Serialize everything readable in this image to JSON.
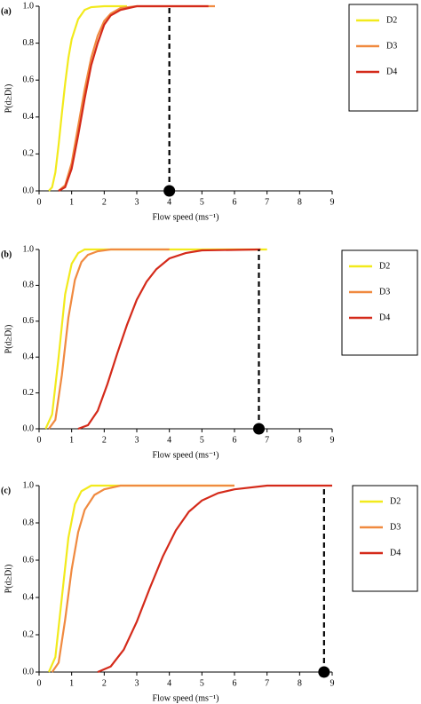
{
  "chart_data": [
    {
      "type": "line",
      "title": "(a)",
      "xlabel": "Flow speed (ms⁻¹)",
      "ylabel": "P(d≥Di)",
      "xlim": [
        0,
        9
      ],
      "xticks": [
        0,
        1,
        2,
        3,
        4,
        5,
        6,
        7,
        8,
        9
      ],
      "ylim": [
        0,
        1
      ],
      "yticks": [
        {
          "value": 0,
          "label": "0.0"
        },
        0.2,
        0.4,
        0.6,
        0.8,
        {
          "value": 1,
          "label": "1.0"
        }
      ],
      "series": [
        {
          "name": "D2",
          "color": "#f2ea1c",
          "x": [
            0.3,
            0.4,
            0.5,
            0.6,
            0.7,
            0.8,
            0.9,
            1.0,
            1.2,
            1.4,
            1.6,
            2.0,
            2.7
          ],
          "values": [
            0,
            0.02,
            0.1,
            0.25,
            0.42,
            0.58,
            0.72,
            0.82,
            0.93,
            0.98,
            0.995,
            1,
            1
          ]
        },
        {
          "name": "D3",
          "color": "#f08a40",
          "x": [
            0.6,
            0.8,
            1.0,
            1.2,
            1.4,
            1.6,
            1.8,
            2.0,
            2.2,
            2.5,
            3.0,
            4.0,
            5.4
          ],
          "values": [
            0,
            0.03,
            0.15,
            0.35,
            0.55,
            0.72,
            0.84,
            0.92,
            0.96,
            0.99,
            1,
            1,
            1
          ]
        },
        {
          "name": "D4",
          "color": "#d42a1a",
          "x": [
            0.6,
            0.8,
            1.0,
            1.2,
            1.4,
            1.6,
            1.8,
            2.0,
            2.2,
            2.5,
            3.0,
            4.0,
            5.2
          ],
          "values": [
            0,
            0.02,
            0.12,
            0.3,
            0.5,
            0.68,
            0.8,
            0.9,
            0.95,
            0.98,
            1,
            1,
            1
          ]
        }
      ],
      "marker": {
        "x": 4,
        "y": 0
      }
    },
    {
      "type": "line",
      "title": "(b)",
      "xlabel": "Flow speed (ms⁻¹)",
      "ylabel": "P(d≥Di)",
      "xlim": [
        0,
        9
      ],
      "xticks": [
        0,
        1,
        2,
        3,
        4,
        5,
        6,
        7,
        8,
        9
      ],
      "ylim": [
        0,
        1
      ],
      "yticks": [
        {
          "value": 0,
          "label": "0.0"
        },
        0.2,
        0.4,
        0.6,
        0.8,
        {
          "value": 1,
          "label": "1.0"
        }
      ],
      "series": [
        {
          "name": "D2",
          "color": "#f2ea1c",
          "x": [
            0.2,
            0.4,
            0.6,
            0.8,
            1.0,
            1.2,
            1.4,
            1.8,
            7.0
          ],
          "values": [
            0,
            0.08,
            0.4,
            0.75,
            0.92,
            0.98,
            1,
            1,
            1
          ]
        },
        {
          "name": "D3",
          "color": "#f08a40",
          "x": [
            0.3,
            0.5,
            0.7,
            0.9,
            1.1,
            1.3,
            1.5,
            1.8,
            2.2,
            4.0
          ],
          "values": [
            0,
            0.05,
            0.3,
            0.62,
            0.83,
            0.93,
            0.97,
            0.99,
            1,
            1
          ]
        },
        {
          "name": "D4",
          "color": "#d42a1a",
          "x": [
            1.2,
            1.5,
            1.8,
            2.1,
            2.4,
            2.7,
            3.0,
            3.3,
            3.6,
            4.0,
            4.5,
            5.0,
            6.8
          ],
          "values": [
            0,
            0.02,
            0.1,
            0.25,
            0.42,
            0.58,
            0.72,
            0.82,
            0.89,
            0.95,
            0.98,
            0.995,
            1
          ]
        }
      ],
      "marker": {
        "x": 6.75,
        "y": 0
      }
    },
    {
      "type": "line",
      "title": "(c)",
      "xlabel": "Flow speed (ms⁻¹)",
      "ylabel": "P(d≥Di)",
      "xlim": [
        0,
        9
      ],
      "xticks": [
        0,
        1,
        2,
        3,
        4,
        5,
        6,
        7,
        8,
        9
      ],
      "ylim": [
        0,
        1
      ],
      "yticks": [
        {
          "value": 0,
          "label": "0.0"
        },
        0.2,
        0.4,
        0.6,
        0.8,
        {
          "value": 1,
          "label": "1.0"
        }
      ],
      "series": [
        {
          "name": "D2",
          "color": "#f2ea1c",
          "x": [
            0.3,
            0.5,
            0.7,
            0.9,
            1.1,
            1.3,
            1.6,
            2.0,
            6.0
          ],
          "values": [
            0,
            0.08,
            0.4,
            0.72,
            0.9,
            0.97,
            1,
            1,
            1
          ]
        },
        {
          "name": "D3",
          "color": "#f08a40",
          "x": [
            0.4,
            0.6,
            0.8,
            1.0,
            1.2,
            1.4,
            1.7,
            2.0,
            2.5,
            6.0
          ],
          "values": [
            0,
            0.05,
            0.28,
            0.55,
            0.75,
            0.87,
            0.95,
            0.98,
            1,
            1
          ]
        },
        {
          "name": "D4",
          "color": "#d42a1a",
          "x": [
            1.8,
            2.2,
            2.6,
            3.0,
            3.4,
            3.8,
            4.2,
            4.6,
            5.0,
            5.5,
            6.0,
            7.0,
            9.0
          ],
          "values": [
            0,
            0.03,
            0.12,
            0.27,
            0.45,
            0.62,
            0.76,
            0.86,
            0.92,
            0.96,
            0.98,
            1,
            1
          ]
        }
      ],
      "marker": {
        "x": 8.75,
        "y": 0
      }
    }
  ]
}
